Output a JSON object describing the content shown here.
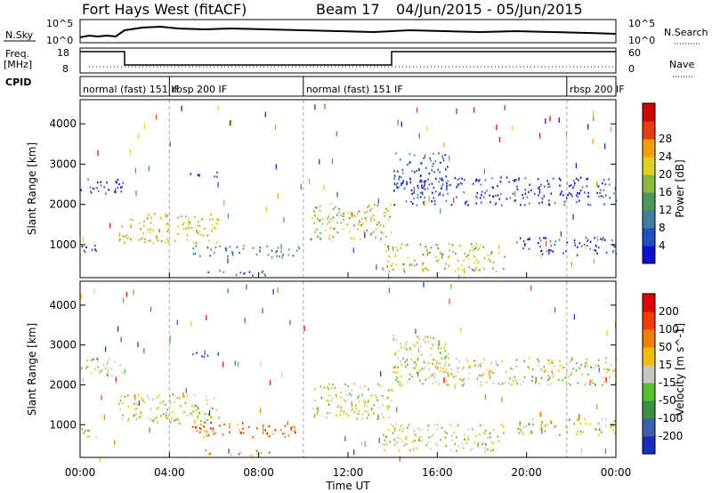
{
  "header": {
    "radar_title": "Fort Hays West (fitACF)",
    "beam_label": "Beam 17",
    "date_range": "04/Jun/2015 - 05/Jun/2015"
  },
  "summary_panels": {
    "nsky": {
      "label": "N.Sky",
      "left_ticks": [
        "10^5",
        "10^0"
      ],
      "right_ticks": [
        "10^5",
        "10^0"
      ],
      "right_label": "N.Search"
    },
    "freq": {
      "label_line1": "Freq.",
      "label_line2": "[MHz]",
      "left_ticks": [
        "18",
        "8"
      ],
      "right_ticks": [
        "60",
        "0"
      ],
      "right_label": "Nave"
    },
    "cpid": {
      "label": "CPID",
      "segments": [
        {
          "label": "normal (fast) 151 IF",
          "start_h": 0,
          "end_h": 4.0
        },
        {
          "label": "rbsp 200 IF",
          "start_h": 4.0,
          "end_h": 10.0
        },
        {
          "label": "normal (fast) 151 IF",
          "start_h": 10.0,
          "end_h": 21.8
        },
        {
          "label": "rbsp 200 IF",
          "start_h": 21.8,
          "end_h": 24.0
        }
      ]
    }
  },
  "chart_data": [
    {
      "type": "heatmap",
      "title": "Power",
      "xlabel": "Time UT",
      "ylabel": "Slant Range [km]",
      "xlim_hours": [
        0,
        24
      ],
      "x_tick_labels": [
        "00:00",
        "04:00",
        "08:00",
        "12:00",
        "16:00",
        "20:00",
        "00:00"
      ],
      "ylim_km": [
        180,
        4600
      ],
      "y_tick_values": [
        1000,
        2000,
        3000,
        4000
      ],
      "y_tick_labels": [
        "1000",
        "2000",
        "3000",
        "4000"
      ],
      "colorbar": {
        "label": "Power [dB]",
        "ticks": [
          "4",
          "8",
          "12",
          "16",
          "20",
          "24",
          "28"
        ],
        "colors": [
          "#1010c8",
          "#2050c0",
          "#3f7fa0",
          "#4b9a5a",
          "#8ab840",
          "#e0d020",
          "#f0a000",
          "#e04010",
          "#d00000"
        ]
      },
      "scatter_regions": [
        {
          "t0": 0.0,
          "t1": 1.9,
          "r0": 2250,
          "r1": 2700,
          "level": 0.15
        },
        {
          "t0": 0.0,
          "t1": 0.8,
          "r0": 700,
          "r1": 1000,
          "level": 0.15
        },
        {
          "t0": 1.7,
          "t1": 6.2,
          "r0": 1050,
          "r1": 1800,
          "level": 0.6
        },
        {
          "t0": 5.0,
          "t1": 9.8,
          "r0": 700,
          "r1": 1000,
          "level": 0.3
        },
        {
          "t0": 5.3,
          "t1": 8.5,
          "r0": 250,
          "r1": 380,
          "level": 0.2
        },
        {
          "t0": 4.8,
          "t1": 6.2,
          "r0": 2700,
          "r1": 2850,
          "level": 0.1
        },
        {
          "t0": 10.3,
          "t1": 14.0,
          "r0": 1150,
          "r1": 2050,
          "level": 0.55
        },
        {
          "t0": 14.0,
          "t1": 24.0,
          "r0": 2000,
          "r1": 2700,
          "level": 0.15
        },
        {
          "t0": 14.0,
          "t1": 16.5,
          "r0": 2400,
          "r1": 3300,
          "level": 0.2
        },
        {
          "t0": 13.5,
          "t1": 19.0,
          "r0": 350,
          "r1": 1050,
          "level": 0.55
        },
        {
          "t0": 19.5,
          "t1": 24.0,
          "r0": 750,
          "r1": 1200,
          "level": 0.15
        }
      ]
    },
    {
      "type": "heatmap",
      "title": "Velocity",
      "xlabel": "Time UT",
      "ylabel": "Slant Range [km]",
      "xlim_hours": [
        0,
        24
      ],
      "x_tick_labels": [
        "00:00",
        "04:00",
        "08:00",
        "12:00",
        "16:00",
        "20:00",
        "00:00"
      ],
      "ylim_km": [
        180,
        4600
      ],
      "y_tick_values": [
        1000,
        2000,
        3000,
        4000
      ],
      "y_tick_labels": [
        "1000",
        "2000",
        "3000",
        "4000"
      ],
      "colorbar": {
        "label": "Velocity [m s^-1]",
        "ticks": [
          "200",
          "100",
          "50",
          "15",
          "-15",
          "-50",
          "-100",
          "-200"
        ],
        "colors": [
          "#1830b8",
          "#3f5fa8",
          "#3f8f40",
          "#58c030",
          "#c8c8c0",
          "#f0c000",
          "#f08000",
          "#f04000",
          "#e00000"
        ]
      },
      "scatter_regions": [
        {
          "t0": 0.0,
          "t1": 1.9,
          "r0": 2250,
          "r1": 2700,
          "level": 0.5
        },
        {
          "t0": 0.0,
          "t1": 0.8,
          "r0": 700,
          "r1": 1000,
          "level": 0.5
        },
        {
          "t0": 1.7,
          "t1": 6.2,
          "r0": 1050,
          "r1": 1800,
          "level": 0.5
        },
        {
          "t0": 5.0,
          "t1": 9.8,
          "r0": 700,
          "r1": 1100,
          "level": 0.75
        },
        {
          "t0": 5.3,
          "t1": 8.5,
          "r0": 250,
          "r1": 380,
          "level": 0.7
        },
        {
          "t0": 4.8,
          "t1": 6.2,
          "r0": 2700,
          "r1": 2850,
          "level": 0.1
        },
        {
          "t0": 10.3,
          "t1": 14.0,
          "r0": 1150,
          "r1": 2050,
          "level": 0.5
        },
        {
          "t0": 14.0,
          "t1": 24.0,
          "r0": 2000,
          "r1": 2700,
          "level": 0.5
        },
        {
          "t0": 14.0,
          "t1": 16.5,
          "r0": 2400,
          "r1": 3300,
          "level": 0.5
        },
        {
          "t0": 13.5,
          "t1": 19.0,
          "r0": 350,
          "r1": 1050,
          "level": 0.5
        },
        {
          "t0": 19.5,
          "t1": 24.0,
          "r0": 750,
          "r1": 1200,
          "level": 0.5
        }
      ]
    }
  ]
}
